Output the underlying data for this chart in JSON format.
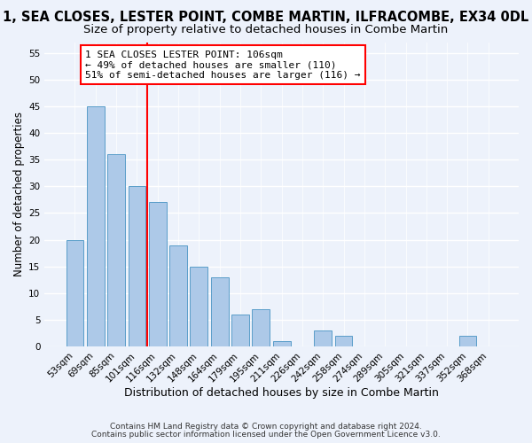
{
  "title": "1, SEA CLOSES, LESTER POINT, COMBE MARTIN, ILFRACOMBE, EX34 0DL",
  "subtitle": "Size of property relative to detached houses in Combe Martin",
  "xlabel": "Distribution of detached houses by size in Combe Martin",
  "ylabel": "Number of detached properties",
  "footnote1": "Contains HM Land Registry data © Crown copyright and database right 2024.",
  "footnote2": "Contains public sector information licensed under the Open Government Licence v3.0.",
  "bar_labels": [
    "53sqm",
    "69sqm",
    "85sqm",
    "101sqm",
    "116sqm",
    "132sqm",
    "148sqm",
    "164sqm",
    "179sqm",
    "195sqm",
    "211sqm",
    "226sqm",
    "242sqm",
    "258sqm",
    "274sqm",
    "289sqm",
    "305sqm",
    "321sqm",
    "337sqm",
    "352sqm",
    "368sqm"
  ],
  "bar_values": [
    20,
    45,
    36,
    30,
    27,
    19,
    15,
    13,
    6,
    7,
    1,
    0,
    3,
    2,
    0,
    0,
    0,
    0,
    0,
    2,
    0
  ],
  "bar_color": "#adc9e8",
  "bar_edge_color": "#5a9ec9",
  "vline_x_index": 3,
  "vline_color": "red",
  "annotation_text": "1 SEA CLOSES LESTER POINT: 106sqm\n← 49% of detached houses are smaller (110)\n51% of semi-detached houses are larger (116) →",
  "annotation_box_color": "white",
  "annotation_box_edge": "red",
  "ylim": [
    0,
    57
  ],
  "yticks": [
    0,
    5,
    10,
    15,
    20,
    25,
    30,
    35,
    40,
    45,
    50,
    55
  ],
  "background_color": "#edf2fb",
  "title_fontsize": 10.5,
  "subtitle_fontsize": 9.5,
  "xlabel_fontsize": 9,
  "ylabel_fontsize": 8.5,
  "tick_fontsize": 7.5,
  "annotation_fontsize": 8,
  "footnote_fontsize": 6.5
}
